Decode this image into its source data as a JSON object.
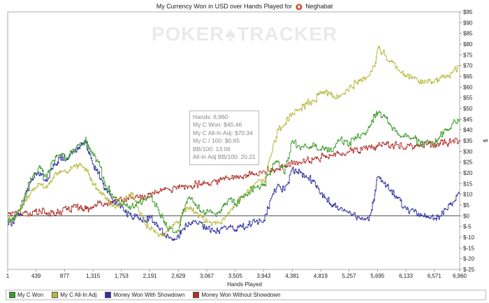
{
  "title": {
    "prefix": "My Currency Won in USD over Hands Played for",
    "player": "Neghabat"
  },
  "watermark": {
    "left": "POKER",
    "right": "TRACKER"
  },
  "tooltip": {
    "hands": "Hands: 6,960",
    "c_won": "My C Won: $45.46",
    "allin_adj": "My C All-In Adj: $70.34",
    "c_per_100": "My C / 100: $0.65",
    "bb100": "BB/100: 13.06",
    "allin_bb100": "All-In Adj BB/100: 20.21"
  },
  "legend": [
    {
      "label": "My C Won",
      "color": "#3a9a2a"
    },
    {
      "label": "My C All-In Adj",
      "color": "#b6b83a"
    },
    {
      "label": "Money Won With Showdown",
      "color": "#2f2fa0"
    },
    {
      "label": "Money Won Without Showdown",
      "color": "#b0302a"
    }
  ],
  "chart_data": {
    "type": "line",
    "title": "My Currency Won in USD over Hands Played for Neghabat",
    "xlabel": "Hands Played",
    "ylabel": "$",
    "xlim": [
      1,
      6960
    ],
    "ylim": [
      -25,
      95
    ],
    "x_ticks": [
      "1",
      "439",
      "877",
      "1,315",
      "1,753",
      "2,191",
      "2,629",
      "3,067",
      "3,505",
      "3,943",
      "4,381",
      "4,819",
      "5,257",
      "5,695",
      "6,133",
      "6,571",
      "6,960"
    ],
    "x_tick_values": [
      1,
      439,
      877,
      1315,
      1753,
      2191,
      2629,
      3067,
      3505,
      3943,
      4381,
      4819,
      5257,
      5695,
      6133,
      6571,
      6960
    ],
    "y_ticks": [
      "$-25",
      "$-20",
      "$-15",
      "$-10",
      "$-5",
      "$0",
      "$5",
      "$10",
      "$15",
      "$20",
      "$25",
      "$30",
      "$35",
      "$40",
      "$45",
      "$50",
      "$55",
      "$60",
      "$65",
      "$70",
      "$75",
      "$80",
      "$85",
      "$90",
      "$95"
    ],
    "y_tick_values": [
      -25,
      -20,
      -15,
      -10,
      -5,
      0,
      5,
      10,
      15,
      20,
      25,
      30,
      35,
      40,
      45,
      50,
      55,
      60,
      65,
      70,
      75,
      80,
      85,
      90,
      95
    ],
    "grid": true,
    "legend_position": "bottom",
    "series": [
      {
        "name": "My C Won",
        "color": "#3a9a2a",
        "x": [
          1,
          100,
          200,
          300,
          400,
          500,
          600,
          700,
          800,
          900,
          1000,
          1100,
          1200,
          1250,
          1315,
          1400,
          1500,
          1600,
          1700,
          1800,
          1900,
          2000,
          2100,
          2191,
          2300,
          2400,
          2500,
          2629,
          2700,
          2800,
          2900,
          3000,
          3067,
          3200,
          3300,
          3400,
          3505,
          3600,
          3700,
          3800,
          3943,
          4050,
          4150,
          4250,
          4381,
          4500,
          4600,
          4700,
          4819,
          4900,
          5000,
          5100,
          5257,
          5350,
          5450,
          5550,
          5650,
          5695,
          5800,
          5900,
          6000,
          6133,
          6250,
          6350,
          6450,
          6571,
          6650,
          6750,
          6850,
          6960
        ],
        "y": [
          -3,
          0,
          5,
          13,
          20,
          22,
          18,
          26,
          28,
          27,
          31,
          33,
          36,
          31,
          28,
          25,
          14,
          10,
          7,
          5,
          4,
          6,
          8,
          9,
          4,
          -3,
          -6,
          -7,
          3,
          8,
          5,
          2,
          3,
          0,
          4,
          8,
          5,
          9,
          11,
          13,
          14,
          22,
          25,
          20,
          35,
          31,
          32,
          34,
          31,
          32,
          30,
          35,
          34,
          37,
          38,
          41,
          47,
          48,
          46,
          42,
          38,
          37,
          36,
          33,
          35,
          34,
          37,
          40,
          43,
          45.46
        ]
      },
      {
        "name": "My C All-In Adj",
        "color": "#b6b83a",
        "x": [
          1,
          100,
          200,
          300,
          400,
          500,
          600,
          700,
          800,
          900,
          1000,
          1100,
          1200,
          1250,
          1315,
          1400,
          1500,
          1600,
          1700,
          1800,
          1900,
          2000,
          2100,
          2191,
          2300,
          2400,
          2500,
          2629,
          2700,
          2800,
          2900,
          3000,
          3067,
          3200,
          3300,
          3400,
          3505,
          3600,
          3700,
          3800,
          3943,
          4050,
          4150,
          4250,
          4381,
          4500,
          4600,
          4700,
          4819,
          4900,
          5000,
          5100,
          5257,
          5350,
          5450,
          5550,
          5650,
          5695,
          5800,
          5900,
          6000,
          6133,
          6250,
          6350,
          6450,
          6571,
          6650,
          6750,
          6850,
          6960
        ],
        "y": [
          -2,
          -1,
          4,
          9,
          13,
          15,
          13,
          18,
          21,
          20,
          23,
          24,
          22,
          19,
          15,
          12,
          8,
          5,
          4,
          8,
          11,
          4,
          -3,
          -6,
          -8,
          -9,
          -5,
          -3,
          2,
          4,
          1,
          -1,
          -3,
          -4,
          -2,
          1,
          5,
          9,
          12,
          15,
          16,
          28,
          40,
          42,
          48,
          50,
          52,
          54,
          57,
          58,
          55,
          56,
          60,
          62,
          63,
          65,
          70,
          78,
          75,
          72,
          68,
          65,
          64,
          63,
          62,
          63,
          64,
          65,
          67,
          70.34
        ]
      },
      {
        "name": "Money Won With Showdown",
        "color": "#2f2fa0",
        "x": [
          1,
          100,
          200,
          300,
          400,
          500,
          600,
          700,
          800,
          900,
          1000,
          1100,
          1200,
          1250,
          1315,
          1400,
          1500,
          1600,
          1700,
          1800,
          1900,
          2000,
          2100,
          2191,
          2300,
          2400,
          2500,
          2629,
          2700,
          2800,
          2900,
          3000,
          3067,
          3200,
          3300,
          3400,
          3505,
          3600,
          3700,
          3800,
          3943,
          4050,
          4150,
          4250,
          4381,
          4500,
          4600,
          4700,
          4819,
          4900,
          5000,
          5100,
          5257,
          5350,
          5450,
          5550,
          5650,
          5695,
          5800,
          5900,
          6000,
          6133,
          6250,
          6350,
          6450,
          6571,
          6650,
          6750,
          6850,
          6960
        ],
        "y": [
          -4,
          -2,
          3,
          12,
          18,
          20,
          16,
          24,
          27,
          26,
          30,
          32,
          34,
          29,
          24,
          20,
          12,
          8,
          5,
          2,
          0,
          -1,
          -2,
          -1,
          -5,
          -8,
          -10,
          -10,
          -6,
          -4,
          -3,
          -5,
          -6,
          -8,
          -6,
          -5,
          -7,
          -5,
          -4,
          -3,
          -2,
          8,
          14,
          12,
          22,
          20,
          18,
          16,
          10,
          8,
          5,
          3,
          2,
          0,
          -1,
          -2,
          10,
          18,
          15,
          12,
          8,
          3,
          2,
          1,
          0,
          -1,
          0,
          3,
          6,
          10.5
        ]
      },
      {
        "name": "Money Won Without Showdown",
        "color": "#b0302a",
        "x": [
          1,
          100,
          200,
          300,
          400,
          500,
          600,
          700,
          800,
          900,
          1000,
          1100,
          1200,
          1250,
          1315,
          1400,
          1500,
          1600,
          1700,
          1800,
          1900,
          2000,
          2100,
          2191,
          2300,
          2400,
          2500,
          2629,
          2700,
          2800,
          2900,
          3000,
          3067,
          3200,
          3300,
          3400,
          3505,
          3600,
          3700,
          3800,
          3943,
          4050,
          4150,
          4250,
          4381,
          4500,
          4600,
          4700,
          4819,
          4900,
          5000,
          5100,
          5257,
          5350,
          5450,
          5550,
          5650,
          5695,
          5800,
          5900,
          6000,
          6133,
          6250,
          6350,
          6450,
          6571,
          6650,
          6750,
          6850,
          6960
        ],
        "y": [
          1,
          1.5,
          1,
          1,
          2,
          2,
          1.5,
          1,
          2,
          3,
          4,
          4,
          3,
          3,
          4,
          6,
          6,
          6,
          7,
          8,
          8,
          9,
          9,
          10,
          11,
          12,
          12,
          13,
          14,
          14,
          15,
          15,
          15,
          16,
          17,
          17,
          18,
          18,
          19,
          19,
          21,
          21,
          22,
          23,
          24,
          25,
          26,
          26,
          27,
          28,
          28,
          29,
          30,
          31,
          31,
          32,
          32,
          33,
          33,
          33,
          33,
          32,
          32,
          33,
          33,
          33,
          34,
          34,
          35,
          35
        ]
      }
    ]
  }
}
